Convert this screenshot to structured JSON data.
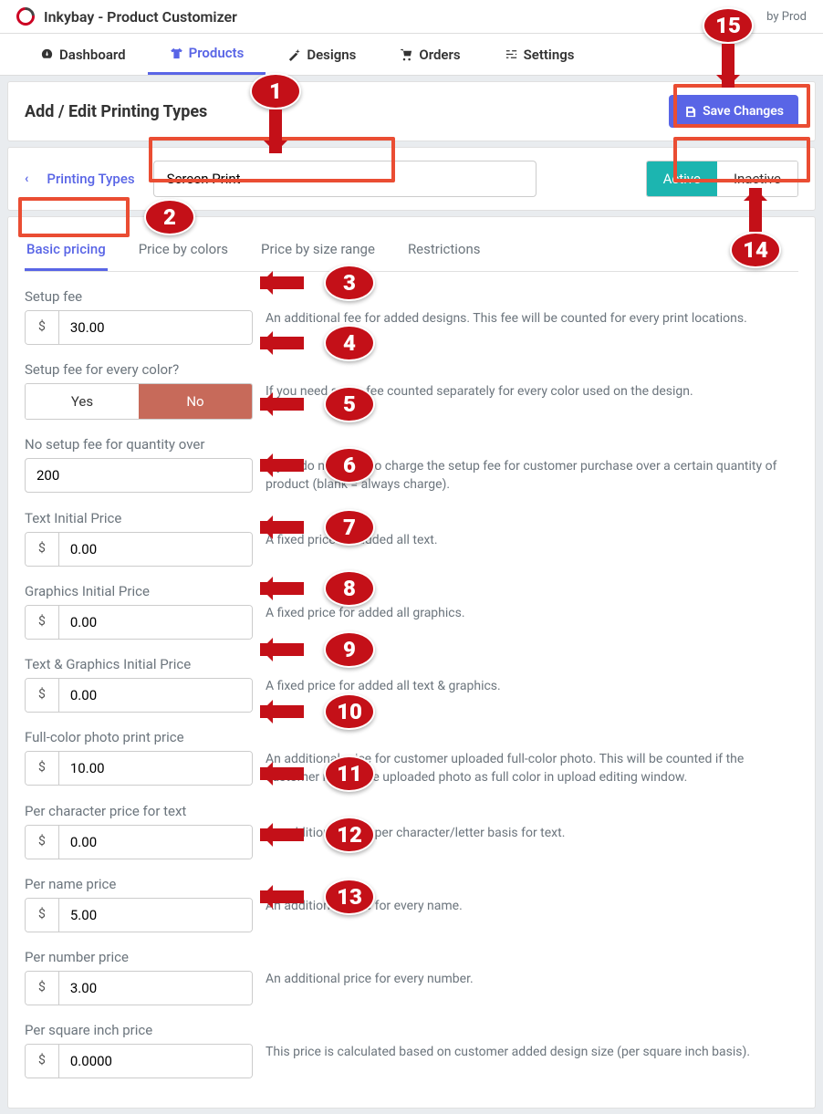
{
  "app": {
    "name": "Inkybay - Product Customizer",
    "by": "by Prod"
  },
  "nav": {
    "items": [
      {
        "label": "Dashboard",
        "active": false
      },
      {
        "label": "Products",
        "active": true
      },
      {
        "label": "Designs",
        "active": false
      },
      {
        "label": "Orders",
        "active": false
      },
      {
        "label": "Settings",
        "active": false
      }
    ]
  },
  "page": {
    "title": "Add / Edit Printing Types",
    "save_label": "Save Changes",
    "breadcrumb": "Printing Types",
    "type_name": "Screen Print",
    "status": {
      "active": "Active",
      "inactive": "Inactive",
      "value": "active"
    }
  },
  "tabs": {
    "items": [
      "Basic pricing",
      "Price by colors",
      "Price by size range",
      "Restrictions"
    ],
    "selected": 0
  },
  "currency": "$",
  "fields": [
    {
      "key": "setup_fee",
      "label": "Setup fee",
      "value": "30.00",
      "prefix": true,
      "help": "An additional fee for added designs. This fee will be counted for every print locations."
    },
    {
      "key": "setup_per_color",
      "label": "Setup fee for every color?",
      "type": "yesno",
      "yes": "Yes",
      "no": "No",
      "value": "no",
      "help": "If you need setup fee counted separately for every color used on the design."
    },
    {
      "key": "no_setup_qty",
      "label": "No setup fee for quantity over",
      "value": "200",
      "prefix": false,
      "help": "If you do not want to charge the setup fee for customer purchase over a certain quantity of product (blank = always charge)."
    },
    {
      "key": "text_initial",
      "label": "Text Initial Price",
      "value": "0.00",
      "prefix": true,
      "help": "A fixed price for added all text."
    },
    {
      "key": "graphics_initial",
      "label": "Graphics Initial Price",
      "value": "0.00",
      "prefix": true,
      "help": "A fixed price for added all graphics."
    },
    {
      "key": "text_graphics_initial",
      "label": "Text & Graphics Initial Price",
      "value": "0.00",
      "prefix": true,
      "help": "A fixed price for added all text & graphics."
    },
    {
      "key": "full_color_photo",
      "label": "Full-color photo print price",
      "value": "10.00",
      "prefix": true,
      "help": "An additional price for customer uploaded full-color photo. This will be counted if the customer marks the uploaded photo as full color in upload editing window."
    },
    {
      "key": "per_char",
      "label": "Per character price for text",
      "value": "0.00",
      "prefix": true,
      "help": "An additional price per character/letter basis for text."
    },
    {
      "key": "per_name",
      "label": "Per name price",
      "value": "5.00",
      "prefix": true,
      "help": "An additional price for every name."
    },
    {
      "key": "per_number",
      "label": "Per number price",
      "value": "3.00",
      "prefix": true,
      "help": "An additional price for every number."
    },
    {
      "key": "per_sq_inch",
      "label": "Per square inch price",
      "value": "0.0000",
      "prefix": true,
      "help": "This price is calculated based on customer added design size (per square inch basis)."
    }
  ],
  "annotations": {
    "numbers": [
      "1",
      "2",
      "3",
      "4",
      "5",
      "6",
      "7",
      "8",
      "9",
      "10",
      "11",
      "12",
      "13",
      "14",
      "15"
    ],
    "color": "#c41018",
    "box_color": "#ea4d33"
  }
}
